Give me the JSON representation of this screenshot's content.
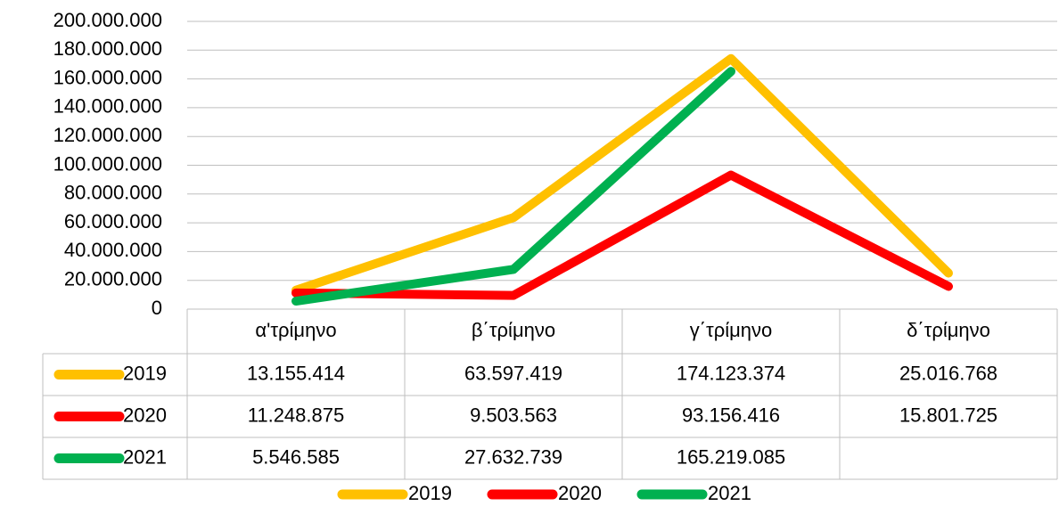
{
  "chart_data": {
    "type": "line",
    "categories": [
      "α'τρίμηνο",
      "β΄τρίμηνο",
      "γ΄τρίμηνο",
      "δ΄τρίμηνο"
    ],
    "series": [
      {
        "name": "2019",
        "color": "#FFC000",
        "values": [
          13155414,
          63597419,
          174123374,
          25016768
        ],
        "value_labels": [
          "13.155.414",
          "63.597.419",
          "174.123.374",
          "25.016.768"
        ]
      },
      {
        "name": "2020",
        "color": "#FF0000",
        "values": [
          11248875,
          9503563,
          93156416,
          15801725
        ],
        "value_labels": [
          "11.248.875",
          "9.503.563",
          "93.156.416",
          "15.801.725"
        ]
      },
      {
        "name": "2021",
        "color": "#00B050",
        "values": [
          5546585,
          27632739,
          165219085,
          null
        ],
        "value_labels": [
          "5.546.585",
          "27.632.739",
          "165.219.085",
          null
        ]
      }
    ],
    "ylim": [
      0,
      200000000
    ],
    "yticks": [
      0,
      {
        "value": 20000000,
        "label": "20.000.000"
      },
      {
        "value": 40000000,
        "label": "40.000.000"
      },
      {
        "value": 60000000,
        "label": "60.000.000"
      },
      {
        "value": 80000000,
        "label": "80.000.000"
      },
      {
        "value": 100000000,
        "label": "100.000.000"
      },
      {
        "value": 120000000,
        "label": "120.000.000"
      },
      {
        "value": 140000000,
        "label": "140.000.000"
      },
      {
        "value": 160000000,
        "label": "160.000.000"
      },
      {
        "value": 180000000,
        "label": "180.000.000"
      },
      {
        "value": 200000000,
        "label": "200.000.000"
      }
    ],
    "grid": true,
    "legend": "bottom"
  }
}
